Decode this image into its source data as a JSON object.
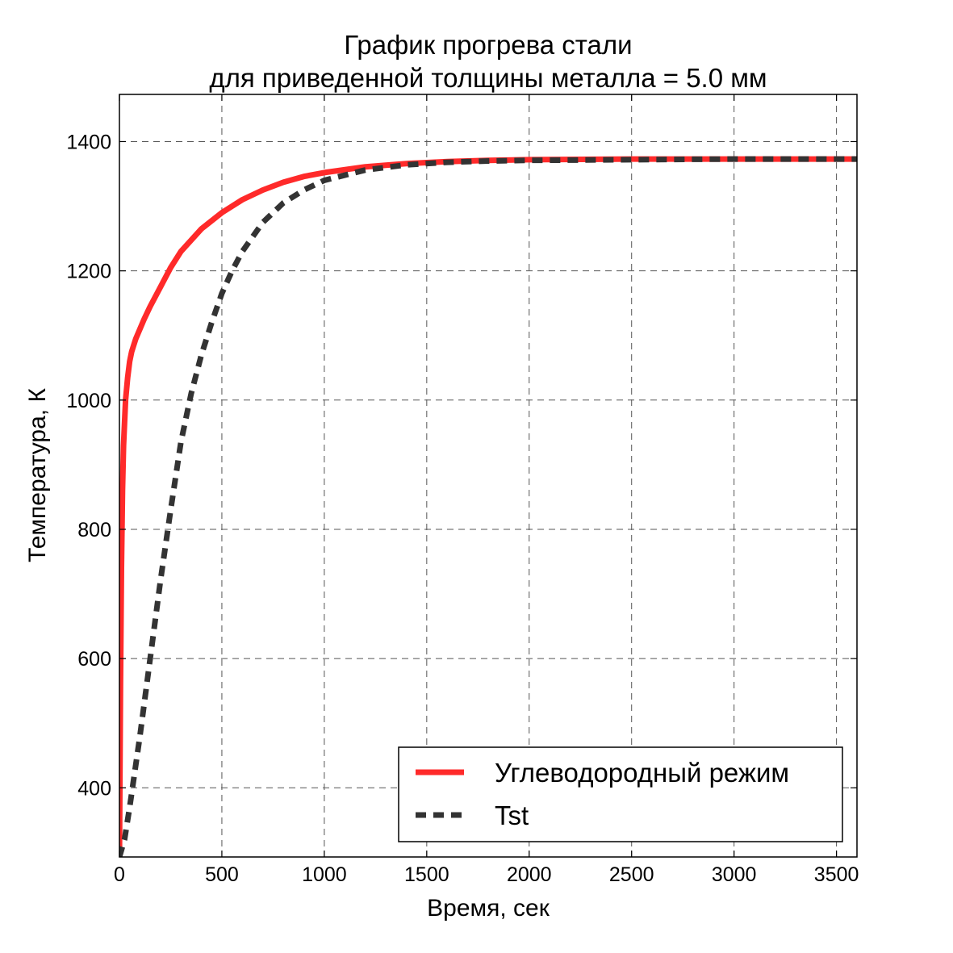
{
  "chart_data": {
    "type": "line",
    "title_lines": [
      "График прогрева стали",
      "для приведенной толщины металла = 5.0 мм"
    ],
    "xlabel": "Время, сек",
    "ylabel": "Температура, К",
    "xlim": [
      0,
      3600
    ],
    "ylim": [
      293,
      1473
    ],
    "xticks": [
      0,
      500,
      1000,
      1500,
      2000,
      2500,
      3000,
      3500
    ],
    "yticks": [
      400,
      600,
      800,
      1000,
      1200,
      1400
    ],
    "grid": true,
    "legend_position": "bottom-right",
    "series": [
      {
        "name": "Углеводородный режим",
        "color": "#ff2a2a",
        "style": "solid",
        "x": [
          0,
          5,
          10,
          15,
          20,
          30,
          40,
          50,
          60,
          80,
          100,
          120,
          150,
          200,
          250,
          300,
          400,
          500,
          600,
          700,
          800,
          900,
          1000,
          1200,
          1400,
          1600,
          1800,
          2000,
          2500,
          3000,
          3600
        ],
        "y": [
          293,
          560,
          740,
          860,
          930,
          1000,
          1035,
          1060,
          1075,
          1095,
          1110,
          1125,
          1145,
          1175,
          1205,
          1230,
          1265,
          1290,
          1310,
          1325,
          1337,
          1346,
          1352,
          1361,
          1366,
          1369,
          1371,
          1372,
          1373,
          1373,
          1373
        ]
      },
      {
        "name": "Tst",
        "color": "#333333",
        "style": "dashed",
        "x": [
          0,
          25,
          50,
          100,
          150,
          200,
          250,
          300,
          350,
          400,
          450,
          500,
          550,
          600,
          700,
          800,
          900,
          1000,
          1200,
          1400,
          1600,
          1800,
          2000,
          2500,
          3000,
          3600
        ],
        "y": [
          293,
          320,
          370,
          480,
          600,
          720,
          830,
          935,
          1010,
          1070,
          1120,
          1165,
          1200,
          1230,
          1275,
          1305,
          1325,
          1340,
          1356,
          1364,
          1368,
          1370,
          1371,
          1372,
          1373,
          1373
        ]
      }
    ]
  }
}
